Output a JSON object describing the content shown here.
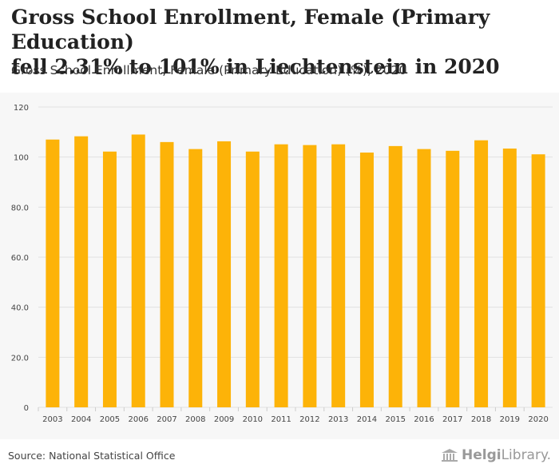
{
  "header": {
    "title_line1": "Gross School Enrollment, Female (Primary Education)",
    "title_line2": "fell 2.31% to 101% in Liechtenstein in 2020",
    "subtitle": "Gross School Enrollment, Female (Primary Education) (%), 2020"
  },
  "footer": {
    "source": "Source: National Statistical Office",
    "brand_bold": "Helgi",
    "brand_light": "Library."
  },
  "colors": {
    "bar": "#FDB308",
    "grid": "#E2E2E2",
    "tick_text": "#444444"
  },
  "chart_data": {
    "type": "bar",
    "title": "Gross School Enrollment, Female (Primary Education) fell 2.31% to 101% in Liechtenstein in 2020",
    "subtitle": "Gross School Enrollment, Female (Primary Education) (%), 2020",
    "xlabel": "",
    "ylabel": "",
    "categories": [
      "2003",
      "2004",
      "2005",
      "2006",
      "2007",
      "2008",
      "2009",
      "2010",
      "2011",
      "2012",
      "2013",
      "2014",
      "2015",
      "2016",
      "2017",
      "2018",
      "2019",
      "2020"
    ],
    "values": [
      107.0,
      108.3,
      102.2,
      109.0,
      106.0,
      103.2,
      106.3,
      102.2,
      105.1,
      104.8,
      105.1,
      101.8,
      104.4,
      103.2,
      102.5,
      106.7,
      103.4,
      101.1
    ],
    "ylim": [
      0,
      120
    ],
    "yticks": [
      0,
      20,
      40,
      60,
      80,
      100,
      120
    ],
    "ytick_labels": [
      "0",
      "20.0",
      "40.0",
      "60.0",
      "80.0",
      "100",
      "120"
    ],
    "grid": true
  }
}
